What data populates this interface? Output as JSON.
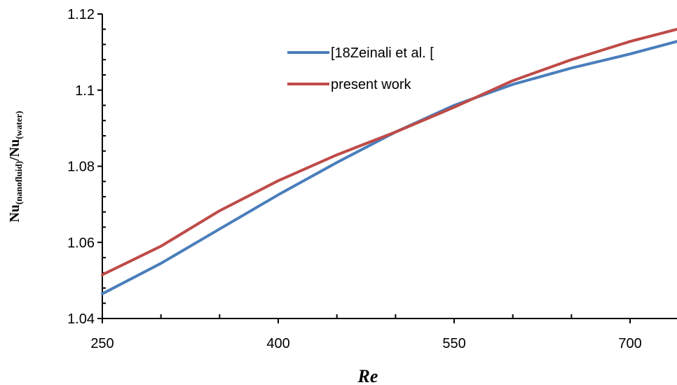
{
  "chart_data": {
    "type": "line",
    "title": "",
    "xlabel": "Re",
    "ylabel": {
      "main1": "Nu",
      "sub1": "(nanofluid)",
      "sep": "/",
      "main2": "Nu",
      "sub2": "(water)"
    },
    "xlim": [
      250,
      740
    ],
    "ylim": [
      1.04,
      1.12
    ],
    "xticks": [
      250,
      400,
      550,
      700
    ],
    "xtick_labels": [
      "250",
      "400",
      "550",
      "700"
    ],
    "yticks": [
      1.04,
      1.06,
      1.08,
      1.1,
      1.12
    ],
    "ytick_labels": [
      "1.04",
      "1.06",
      "1.08",
      "1.1",
      "1.12"
    ],
    "grid": false,
    "legend_position": "top-center",
    "series": [
      {
        "name": "[18Zeinali et al. [",
        "color": "#4a7ebb",
        "x": [
          250,
          300,
          350,
          400,
          450,
          500,
          550,
          600,
          650,
          700,
          740
        ],
        "y": [
          1.0465,
          1.0545,
          1.0635,
          1.0725,
          1.081,
          1.089,
          1.096,
          1.1015,
          1.1058,
          1.1095,
          1.1128
        ]
      },
      {
        "name": "present work",
        "color": "#be4b48",
        "x": [
          250,
          300,
          350,
          400,
          450,
          500,
          550,
          600,
          650,
          700,
          740
        ],
        "y": [
          1.0515,
          1.059,
          1.0683,
          1.0762,
          1.083,
          1.089,
          1.0955,
          1.1025,
          1.108,
          1.1128,
          1.116
        ]
      }
    ]
  }
}
